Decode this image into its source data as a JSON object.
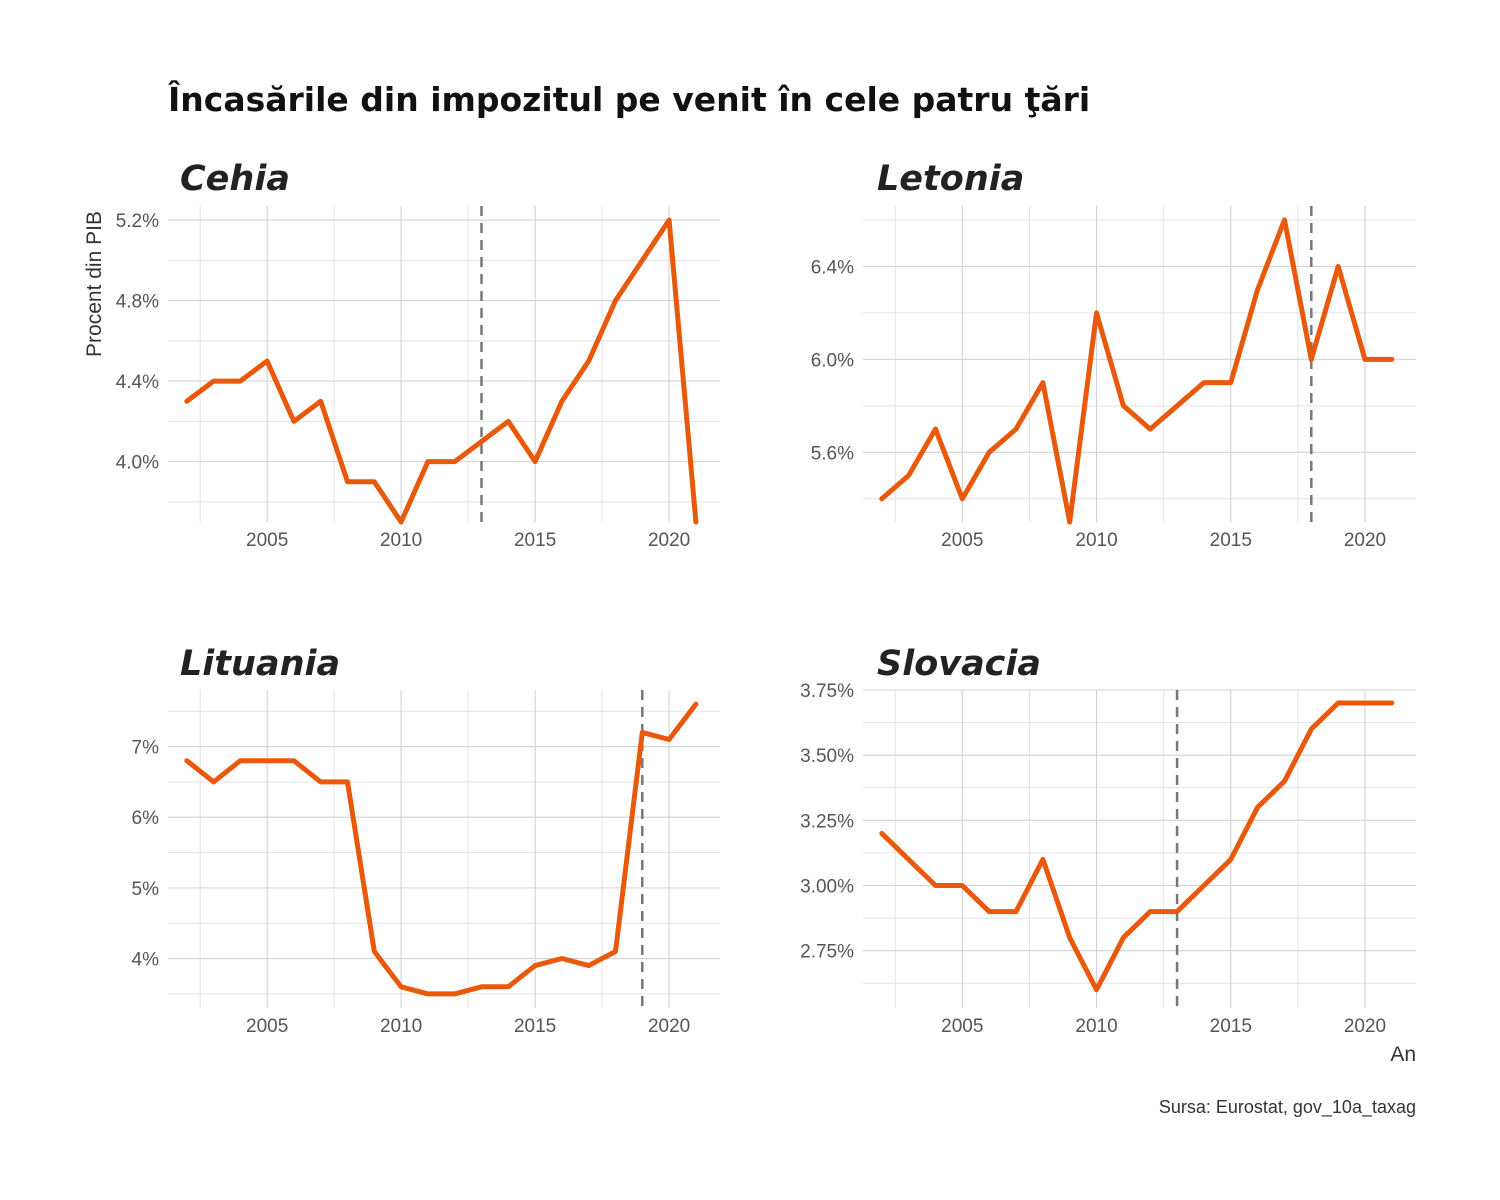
{
  "chart_data": {
    "type": "line",
    "title": "Încasările din impozitul pe venit în cele patru ţări",
    "ylabel": "Procent din PIB",
    "xlabel": "An",
    "caption": "Sursa: Eurostat, gov_10a_taxag",
    "line_color": "#E8590C",
    "panels": [
      {
        "name": "Cehia",
        "x": [
          2002,
          2003,
          2004,
          2005,
          2006,
          2007,
          2008,
          2009,
          2010,
          2011,
          2012,
          2013,
          2014,
          2015,
          2016,
          2017,
          2018,
          2019,
          2020,
          2021
        ],
        "y": [
          4.3,
          4.4,
          4.4,
          4.5,
          4.2,
          4.3,
          3.9,
          3.9,
          3.7,
          4.0,
          4.0,
          4.1,
          4.2,
          4.0,
          4.3,
          4.5,
          4.8,
          5.0,
          5.2,
          3.7
        ],
        "vline": 2013,
        "xlim": [
          2001.3,
          2021.9
        ],
        "ylim": [
          3.7,
          5.27
        ],
        "xticks": [
          2005,
          2010,
          2015,
          2020
        ],
        "yticks": [
          4.0,
          4.4,
          4.8,
          5.2
        ],
        "ytick_labels": [
          "4.0%",
          "4.4%",
          "4.8%",
          "5.2%"
        ]
      },
      {
        "name": "Letonia",
        "x": [
          2002,
          2003,
          2004,
          2005,
          2006,
          2007,
          2008,
          2009,
          2010,
          2011,
          2012,
          2013,
          2014,
          2015,
          2016,
          2017,
          2018,
          2019,
          2020,
          2021
        ],
        "y": [
          5.4,
          5.5,
          5.7,
          5.4,
          5.6,
          5.7,
          5.9,
          5.3,
          6.2,
          5.8,
          5.7,
          5.8,
          5.9,
          5.9,
          6.3,
          6.6,
          6.0,
          6.4,
          6.0,
          6.0
        ],
        "vline": 2018,
        "xlim": [
          2001.3,
          2021.9
        ],
        "ylim": [
          5.3,
          6.66
        ],
        "xticks": [
          2005,
          2010,
          2015,
          2020
        ],
        "yticks": [
          5.6,
          6.0,
          6.4
        ],
        "ytick_labels": [
          "5.6%",
          "6.0%",
          "6.4%"
        ]
      },
      {
        "name": "Lituania",
        "x": [
          2002,
          2003,
          2004,
          2005,
          2006,
          2007,
          2008,
          2009,
          2010,
          2011,
          2012,
          2013,
          2014,
          2015,
          2016,
          2017,
          2018,
          2019,
          2020,
          2021
        ],
        "y": [
          6.8,
          6.5,
          6.8,
          6.8,
          6.8,
          6.5,
          6.5,
          4.1,
          3.6,
          3.5,
          3.5,
          3.6,
          3.6,
          3.9,
          4.0,
          3.9,
          4.1,
          7.2,
          7.1,
          7.6
        ],
        "vline": 2019,
        "xlim": [
          2001.3,
          2021.9
        ],
        "ylim": [
          3.3,
          7.8
        ],
        "xticks": [
          2005,
          2010,
          2015,
          2020
        ],
        "yticks": [
          4,
          5,
          6,
          7
        ],
        "ytick_labels": [
          "4%",
          "5%",
          "6%",
          "7%"
        ]
      },
      {
        "name": "Slovacia",
        "x": [
          2002,
          2003,
          2004,
          2005,
          2006,
          2007,
          2008,
          2009,
          2010,
          2011,
          2012,
          2013,
          2014,
          2015,
          2016,
          2017,
          2018,
          2019,
          2020,
          2021
        ],
        "y": [
          3.2,
          3.1,
          3.0,
          3.0,
          2.9,
          2.9,
          3.1,
          2.8,
          2.6,
          2.8,
          2.9,
          2.9,
          3.0,
          3.1,
          3.3,
          3.4,
          3.6,
          3.7,
          3.7,
          3.7
        ],
        "vline": 2013,
        "xlim": [
          2001.3,
          2021.9
        ],
        "ylim": [
          2.53,
          3.75
        ],
        "xticks": [
          2005,
          2010,
          2015,
          2020
        ],
        "yticks": [
          2.75,
          3.0,
          3.25,
          3.5,
          3.75
        ],
        "ytick_labels": [
          "2.75%",
          "3.00%",
          "3.25%",
          "3.50%",
          "3.75%"
        ]
      }
    ]
  }
}
